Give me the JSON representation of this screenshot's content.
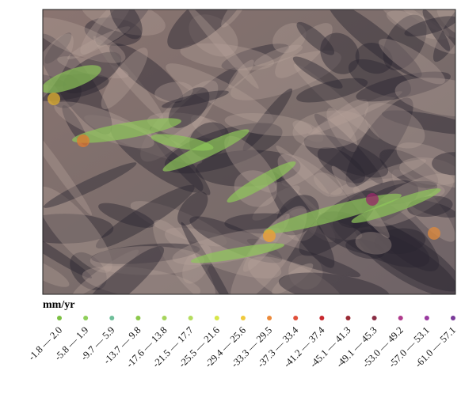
{
  "legend": {
    "title": "mm/yr",
    "items": [
      {
        "label": "-1.8 — 2.0",
        "color": "#7cc043"
      },
      {
        "label": "-5.8 — 1.9",
        "color": "#8fcf5a"
      },
      {
        "label": "-9.7 — 5.9",
        "color": "#6fbf9a"
      },
      {
        "label": "-13.7 — 9.8",
        "color": "#8cc84b"
      },
      {
        "label": "-17.6 — 13.8",
        "color": "#a6d45c"
      },
      {
        "label": "-21.5 — 17.7",
        "color": "#b4dc5e"
      },
      {
        "label": "-25.5 — 21.6",
        "color": "#d7e64a"
      },
      {
        "label": "-29.4 — 25.6",
        "color": "#f0c93c"
      },
      {
        "label": "-33.3 — 29.5",
        "color": "#ec8a3a"
      },
      {
        "label": "-37.3 — 33.4",
        "color": "#e0503a"
      },
      {
        "label": "-41.2 — 37.4",
        "color": "#c8282e"
      },
      {
        "label": "-45.1 — 41.3",
        "color": "#9a2a34"
      },
      {
        "label": "-49.1 — 45.3",
        "color": "#8a2e44"
      },
      {
        "label": "-53.0 — 49.2",
        "color": "#b03a8c"
      },
      {
        "label": "-57.0 — 53.1",
        "color": "#9a3aa0"
      },
      {
        "label": "-61.0 — 57.1",
        "color": "#7a3a9a"
      }
    ]
  }
}
